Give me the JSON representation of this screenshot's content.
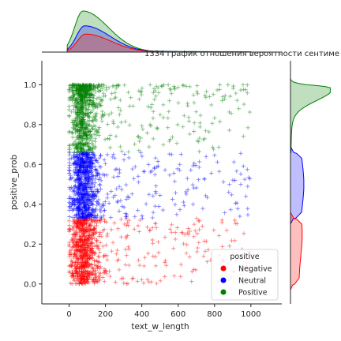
{
  "chart_data": {
    "type": "scatter",
    "title": "1334 график отношения вероятности сентиме",
    "xlabel": "text_w_length",
    "ylabel": "positive_prob",
    "xlim": [
      -150,
      1170
    ],
    "ylim": [
      -0.1,
      1.12
    ],
    "xticks": [
      "0",
      "200",
      "400",
      "600",
      "800",
      "1000"
    ],
    "yticks": [
      "0.0",
      "0.2",
      "0.4",
      "0.6",
      "0.8",
      "1.0"
    ],
    "marker": "+",
    "grid": false,
    "legend": {
      "title": "positive",
      "placement": "lower-right",
      "entries": [
        {
          "name": "Negative",
          "color": "#ff0000"
        },
        {
          "name": "Neutral",
          "color": "#0000ff"
        },
        {
          "name": "Positive",
          "color": "#008000"
        }
      ]
    },
    "series": [
      {
        "name": "Negative",
        "color": "#ff0000",
        "x_range": [
          0,
          1000
        ],
        "y_range": [
          0.0,
          0.33
        ],
        "x_mode": 60
      },
      {
        "name": "Neutral",
        "color": "#0000ff",
        "x_range": [
          0,
          1000
        ],
        "y_range": [
          0.33,
          0.66
        ],
        "x_mode": 60
      },
      {
        "name": "Positive",
        "color": "#008000",
        "x_range": [
          0,
          1000
        ],
        "y_range": [
          0.66,
          1.0
        ],
        "x_mode": 60
      }
    ],
    "marginal_x": [
      {
        "name": "Positive",
        "color": "#008000",
        "peak_x": 75,
        "peak_density": 0.005
      },
      {
        "name": "Neutral",
        "color": "#0000ff",
        "peak_x": 85,
        "peak_density": 0.0032
      },
      {
        "name": "Negative",
        "color": "#ff0000",
        "peak_x": 90,
        "peak_density": 0.0022
      }
    ],
    "marginal_y": [
      {
        "name": "Positive",
        "color": "#008000",
        "range": [
          0.66,
          1.0
        ],
        "peak_y": 0.98,
        "peak_density": 6.8
      },
      {
        "name": "Neutral",
        "color": "#0000ff",
        "range": [
          0.33,
          0.66
        ],
        "peak_y": 0.5,
        "peak_density": 2.4
      },
      {
        "name": "Negative",
        "color": "#ff0000",
        "range": [
          0.0,
          0.33
        ],
        "peak_y": 0.25,
        "peak_density": 2.1
      }
    ]
  }
}
